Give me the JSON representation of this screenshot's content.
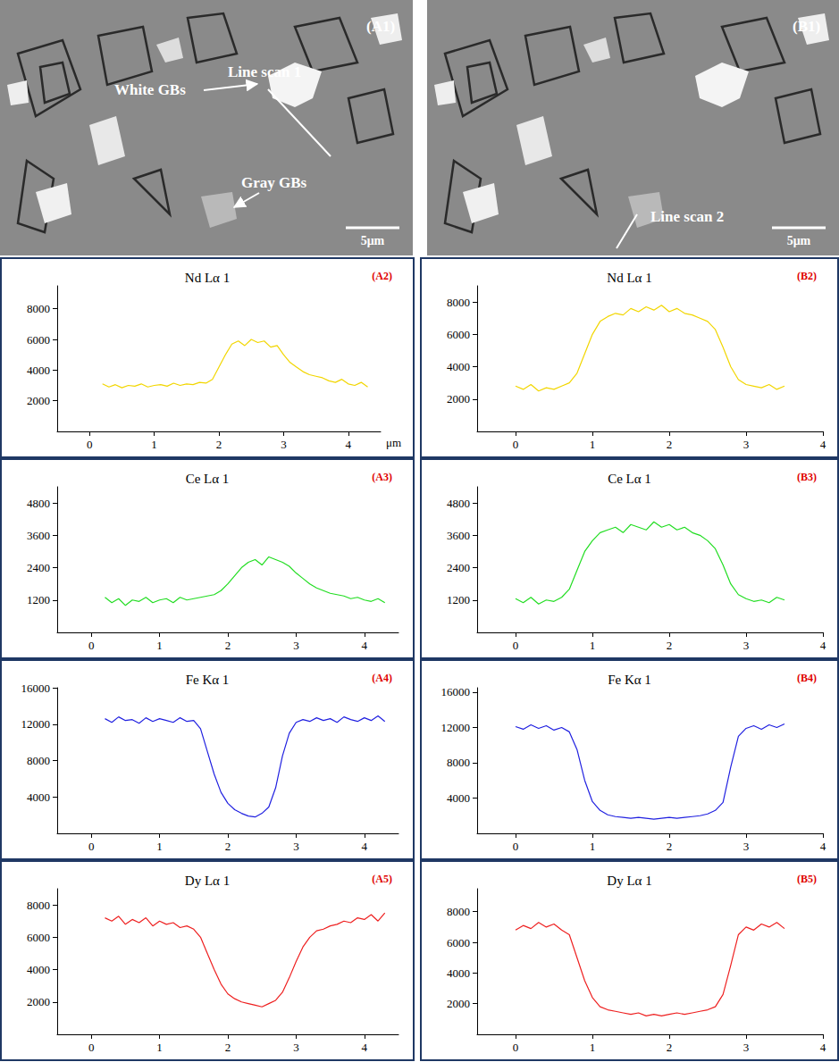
{
  "micrographs": [
    {
      "panel": "(A1)",
      "line_scan": "Line scan 1",
      "annotations": [
        "White GBs",
        "Gray GBs"
      ],
      "scale_bar": "5μm"
    },
    {
      "panel": "(B1)",
      "line_scan": "Line scan 2",
      "scale_bar": "5μm"
    }
  ],
  "chart_data": [
    {
      "type": "line",
      "panel": "(A2)",
      "title": "Nd Lα 1",
      "color": "#f2d600",
      "marker": "none",
      "grid": false,
      "xlabel": "μm",
      "xlim": [
        -0.5,
        4.5
      ],
      "xticks": [
        0,
        1,
        2,
        3,
        4
      ],
      "ylim": [
        0,
        9500
      ],
      "yticks": [
        2000,
        4000,
        6000,
        8000
      ],
      "x": [
        0.2,
        0.3,
        0.4,
        0.5,
        0.6,
        0.7,
        0.8,
        0.9,
        1.0,
        1.1,
        1.2,
        1.3,
        1.4,
        1.5,
        1.6,
        1.7,
        1.8,
        1.9,
        2.0,
        2.1,
        2.2,
        2.3,
        2.4,
        2.5,
        2.6,
        2.7,
        2.8,
        2.9,
        3.0,
        3.1,
        3.2,
        3.3,
        3.4,
        3.5,
        3.6,
        3.7,
        3.8,
        3.9,
        4.0,
        4.1,
        4.2,
        4.3
      ],
      "values": [
        3100,
        2900,
        3050,
        2850,
        3000,
        2950,
        3100,
        2900,
        3000,
        3050,
        2950,
        3150,
        3000,
        3100,
        3050,
        3200,
        3150,
        3400,
        4200,
        5000,
        5700,
        5900,
        5600,
        6000,
        5800,
        5900,
        5500,
        5600,
        5000,
        4500,
        4200,
        3900,
        3700,
        3600,
        3500,
        3300,
        3200,
        3400,
        3100,
        3000,
        3200,
        2900
      ]
    },
    {
      "type": "line",
      "panel": "(A3)",
      "title": "Ce Lα 1",
      "color": "#22dd22",
      "marker": "none",
      "grid": false,
      "xlim": [
        -0.5,
        4.5
      ],
      "xticks": [
        0,
        1,
        2,
        3,
        4
      ],
      "ylim": [
        0,
        5400
      ],
      "yticks": [
        1200,
        2400,
        3600,
        4800
      ],
      "x": [
        0.2,
        0.3,
        0.4,
        0.5,
        0.6,
        0.7,
        0.8,
        0.9,
        1.0,
        1.1,
        1.2,
        1.3,
        1.4,
        1.5,
        1.6,
        1.7,
        1.8,
        1.9,
        2.0,
        2.1,
        2.2,
        2.3,
        2.4,
        2.5,
        2.6,
        2.7,
        2.8,
        2.9,
        3.0,
        3.1,
        3.2,
        3.3,
        3.4,
        3.5,
        3.6,
        3.7,
        3.8,
        3.9,
        4.0,
        4.1,
        4.2,
        4.3
      ],
      "values": [
        1300,
        1100,
        1250,
        1000,
        1200,
        1150,
        1300,
        1100,
        1200,
        1250,
        1100,
        1300,
        1200,
        1250,
        1300,
        1350,
        1400,
        1550,
        1800,
        2100,
        2400,
        2600,
        2700,
        2500,
        2800,
        2700,
        2600,
        2450,
        2200,
        2000,
        1800,
        1650,
        1550,
        1450,
        1400,
        1350,
        1250,
        1300,
        1200,
        1150,
        1250,
        1100
      ]
    },
    {
      "type": "line",
      "panel": "(A4)",
      "title": "Fe Kα 1",
      "color": "#2020e0",
      "marker": "none",
      "grid": false,
      "xlim": [
        -0.5,
        4.5
      ],
      "xticks": [
        0,
        1,
        2,
        3,
        4
      ],
      "ylim": [
        0,
        16000
      ],
      "yticks": [
        4000,
        8000,
        12000,
        16000
      ],
      "x": [
        0.2,
        0.3,
        0.4,
        0.5,
        0.6,
        0.7,
        0.8,
        0.9,
        1.0,
        1.1,
        1.2,
        1.3,
        1.4,
        1.5,
        1.6,
        1.7,
        1.8,
        1.9,
        2.0,
        2.1,
        2.2,
        2.3,
        2.4,
        2.5,
        2.6,
        2.7,
        2.8,
        2.9,
        3.0,
        3.1,
        3.2,
        3.3,
        3.4,
        3.5,
        3.6,
        3.7,
        3.8,
        3.9,
        4.0,
        4.1,
        4.2,
        4.3
      ],
      "values": [
        12600,
        12200,
        12800,
        12400,
        12500,
        12100,
        12700,
        12300,
        12600,
        12400,
        12200,
        12700,
        12300,
        12400,
        11500,
        9000,
        6500,
        4500,
        3300,
        2600,
        2200,
        1900,
        1800,
        2200,
        2900,
        5000,
        8500,
        11000,
        12200,
        12500,
        12300,
        12700,
        12400,
        12600,
        12200,
        12800,
        12500,
        12300,
        12700,
        12400,
        12900,
        12300
      ]
    },
    {
      "type": "line",
      "panel": "(A5)",
      "title": "Dy Lα 1",
      "color": "#ee2020",
      "marker": "none",
      "grid": false,
      "xlim": [
        -0.5,
        4.5
      ],
      "xticks": [
        0,
        1,
        2,
        3,
        4
      ],
      "ylim": [
        0,
        9000
      ],
      "yticks": [
        2000,
        4000,
        6000,
        8000
      ],
      "x": [
        0.2,
        0.3,
        0.4,
        0.5,
        0.6,
        0.7,
        0.8,
        0.9,
        1.0,
        1.1,
        1.2,
        1.3,
        1.4,
        1.5,
        1.6,
        1.7,
        1.8,
        1.9,
        2.0,
        2.1,
        2.2,
        2.3,
        2.4,
        2.5,
        2.6,
        2.7,
        2.8,
        2.9,
        3.0,
        3.1,
        3.2,
        3.3,
        3.4,
        3.5,
        3.6,
        3.7,
        3.8,
        3.9,
        4.0,
        4.1,
        4.2,
        4.3
      ],
      "values": [
        7200,
        7000,
        7300,
        6800,
        7100,
        6900,
        7200,
        6700,
        7000,
        6800,
        6900,
        6600,
        6700,
        6500,
        6000,
        5000,
        4000,
        3100,
        2500,
        2200,
        2000,
        1900,
        1800,
        1700,
        1900,
        2100,
        2600,
        3500,
        4500,
        5400,
        6000,
        6400,
        6500,
        6700,
        6800,
        7000,
        6900,
        7200,
        7100,
        7400,
        7000,
        7500
      ]
    },
    {
      "type": "line",
      "panel": "(B2)",
      "title": "Nd Lα 1",
      "color": "#f2d600",
      "marker": "none",
      "grid": false,
      "xlim": [
        -0.5,
        4
      ],
      "xticks": [
        0,
        1,
        2,
        3,
        4
      ],
      "ylim": [
        0,
        9000
      ],
      "yticks": [
        2000,
        4000,
        6000,
        8000
      ],
      "x": [
        0.0,
        0.1,
        0.2,
        0.3,
        0.4,
        0.5,
        0.6,
        0.7,
        0.8,
        0.9,
        1.0,
        1.1,
        1.2,
        1.3,
        1.4,
        1.5,
        1.6,
        1.7,
        1.8,
        1.9,
        2.0,
        2.1,
        2.2,
        2.3,
        2.4,
        2.5,
        2.6,
        2.7,
        2.8,
        2.9,
        3.0,
        3.1,
        3.2,
        3.3,
        3.4,
        3.5
      ],
      "values": [
        2800,
        2600,
        2900,
        2500,
        2700,
        2600,
        2800,
        3000,
        3600,
        4800,
        6000,
        6800,
        7100,
        7300,
        7200,
        7600,
        7400,
        7700,
        7500,
        7800,
        7400,
        7600,
        7300,
        7200,
        7000,
        6800,
        6300,
        5200,
        4000,
        3200,
        2900,
        2800,
        2700,
        2900,
        2600,
        2800
      ]
    },
    {
      "type": "line",
      "panel": "(B3)",
      "title": "Ce Lα 1",
      "color": "#22dd22",
      "marker": "none",
      "grid": false,
      "xlim": [
        -0.5,
        4
      ],
      "xticks": [
        0,
        1,
        2,
        3,
        4
      ],
      "ylim": [
        0,
        5400
      ],
      "yticks": [
        1200,
        2400,
        3600,
        4800
      ],
      "x": [
        0.0,
        0.1,
        0.2,
        0.3,
        0.4,
        0.5,
        0.6,
        0.7,
        0.8,
        0.9,
        1.0,
        1.1,
        1.2,
        1.3,
        1.4,
        1.5,
        1.6,
        1.7,
        1.8,
        1.9,
        2.0,
        2.1,
        2.2,
        2.3,
        2.4,
        2.5,
        2.6,
        2.7,
        2.8,
        2.9,
        3.0,
        3.1,
        3.2,
        3.3,
        3.4,
        3.5
      ],
      "values": [
        1250,
        1100,
        1300,
        1050,
        1200,
        1150,
        1300,
        1600,
        2300,
        3000,
        3400,
        3700,
        3800,
        3900,
        3700,
        4000,
        3900,
        3800,
        4100,
        3900,
        4000,
        3800,
        3900,
        3700,
        3600,
        3400,
        3100,
        2500,
        1800,
        1400,
        1250,
        1150,
        1200,
        1100,
        1300,
        1200
      ]
    },
    {
      "type": "line",
      "panel": "(B4)",
      "title": "Fe Kα 1",
      "color": "#2020e0",
      "marker": "none",
      "grid": false,
      "xlim": [
        -0.5,
        4
      ],
      "xticks": [
        0,
        1,
        2,
        3,
        4
      ],
      "ylim": [
        0,
        16500
      ],
      "yticks": [
        4000,
        8000,
        12000,
        16000
      ],
      "x": [
        0.0,
        0.1,
        0.2,
        0.3,
        0.4,
        0.5,
        0.6,
        0.7,
        0.8,
        0.9,
        1.0,
        1.1,
        1.2,
        1.3,
        1.4,
        1.5,
        1.6,
        1.7,
        1.8,
        1.9,
        2.0,
        2.1,
        2.2,
        2.3,
        2.4,
        2.5,
        2.6,
        2.7,
        2.8,
        2.9,
        3.0,
        3.1,
        3.2,
        3.3,
        3.4,
        3.5
      ],
      "values": [
        12100,
        11800,
        12300,
        11900,
        12200,
        11700,
        12000,
        11500,
        9500,
        6000,
        3600,
        2600,
        2100,
        1900,
        1800,
        1700,
        1800,
        1700,
        1600,
        1700,
        1800,
        1700,
        1800,
        1900,
        2000,
        2200,
        2600,
        3500,
        7500,
        11000,
        11900,
        12200,
        11800,
        12300,
        12000,
        12400
      ]
    },
    {
      "type": "line",
      "panel": "(B5)",
      "title": "Dy Lα 1",
      "color": "#ee2020",
      "marker": "none",
      "grid": false,
      "xlim": [
        -0.5,
        4
      ],
      "xticks": [
        0,
        1,
        2,
        3,
        4
      ],
      "ylim": [
        0,
        9500
      ],
      "yticks": [
        2000,
        4000,
        6000,
        8000
      ],
      "x": [
        0.0,
        0.1,
        0.2,
        0.3,
        0.4,
        0.5,
        0.6,
        0.7,
        0.8,
        0.9,
        1.0,
        1.1,
        1.2,
        1.3,
        1.4,
        1.5,
        1.6,
        1.7,
        1.8,
        1.9,
        2.0,
        2.1,
        2.2,
        2.3,
        2.4,
        2.5,
        2.6,
        2.7,
        2.8,
        2.9,
        3.0,
        3.1,
        3.2,
        3.3,
        3.4,
        3.5
      ],
      "values": [
        6800,
        7100,
        6900,
        7300,
        7000,
        7200,
        6800,
        6500,
        5000,
        3500,
        2400,
        1800,
        1600,
        1500,
        1400,
        1300,
        1400,
        1200,
        1300,
        1200,
        1300,
        1400,
        1300,
        1400,
        1500,
        1600,
        1800,
        2600,
        4500,
        6500,
        7000,
        6800,
        7200,
        7000,
        7300,
        6900
      ]
    }
  ]
}
